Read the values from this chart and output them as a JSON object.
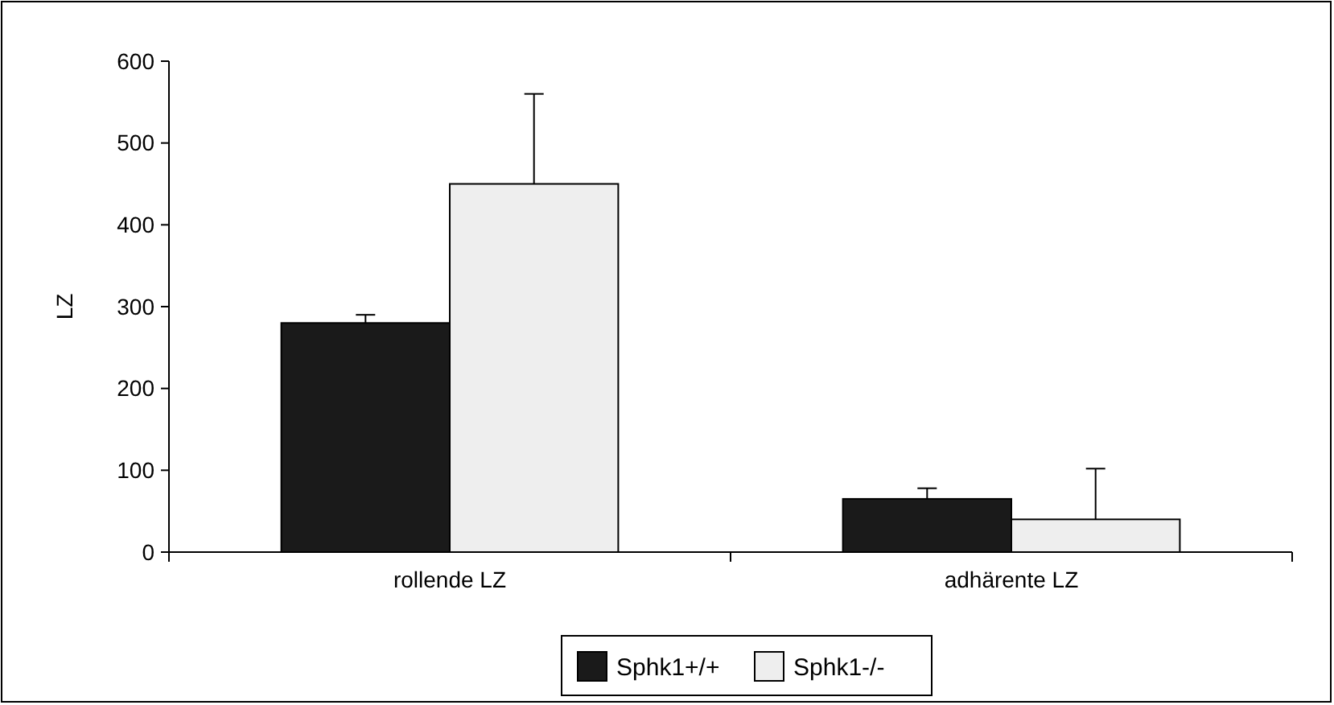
{
  "chart_data": {
    "type": "bar",
    "ylabel": "LZ",
    "categories": [
      "rollende LZ",
      "adhärente LZ"
    ],
    "series": [
      {
        "name": "Sphk1+/+",
        "color": "#1a1a1a",
        "values": [
          280,
          65
        ],
        "errors": [
          [
            280,
            290
          ],
          [
            65,
            78
          ]
        ]
      },
      {
        "name": "Sphk1-/-",
        "color": "#eeeeee",
        "values": [
          450,
          40
        ],
        "errors": [
          [
            450,
            560
          ],
          [
            40,
            102
          ]
        ]
      }
    ],
    "ylim": [
      0,
      600
    ],
    "yticks": [
      0,
      100,
      200,
      300,
      400,
      500,
      600
    ],
    "grid": false,
    "legend": "bottom"
  }
}
